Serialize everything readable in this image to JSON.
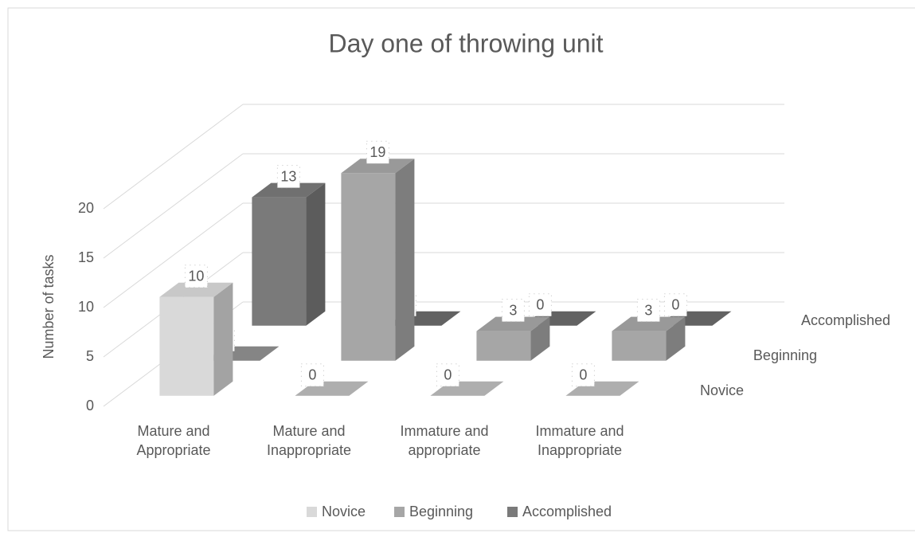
{
  "chart_data": {
    "type": "bar3d",
    "title": "Day one of throwing unit",
    "y_label": "Number of tasks",
    "categories": [
      "Mature and Appropriate",
      "Mature and Inappropriate",
      "Immature and appropriate",
      "Immature and Inappropriate"
    ],
    "series": [
      {
        "name": "Novice",
        "color": "#d9d9d9",
        "values": [
          10,
          0,
          0,
          0
        ]
      },
      {
        "name": "Beginning",
        "color": "#a6a6a6",
        "values": [
          0,
          19,
          3,
          3
        ]
      },
      {
        "name": "Accomplished",
        "color": "#7a7a7a",
        "values": [
          13,
          0,
          0,
          0
        ]
      }
    ],
    "ylim": [
      0,
      20
    ],
    "yticks": [
      0,
      5,
      10,
      15,
      20
    ],
    "grid": true,
    "legend": "bottom"
  }
}
